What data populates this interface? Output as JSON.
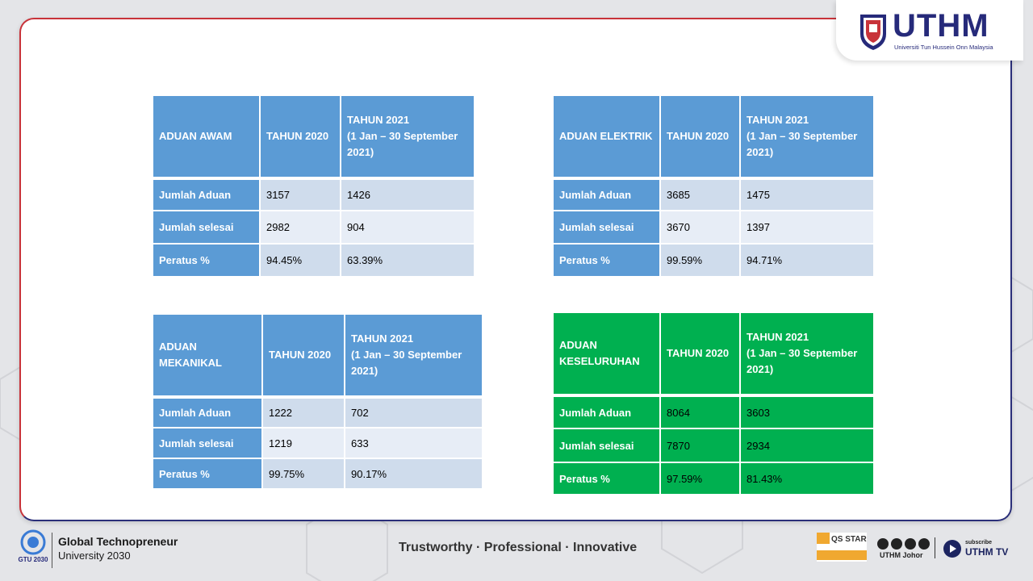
{
  "logo": {
    "name": "UTHM",
    "subtitle": "Universiti Tun Hussein Onn Malaysia"
  },
  "tables": [
    {
      "id": "awam",
      "header": [
        "ADUAN AWAM",
        "TAHUN 2020",
        "TAHUN 2021",
        "(1 Jan – 30 September",
        "2021)"
      ],
      "rows": [
        {
          "label": "Jumlah Aduan",
          "y2020": "3157",
          "y2021": "1426"
        },
        {
          "label": "Jumlah selesai",
          "y2020": "2982",
          "y2021": "904"
        },
        {
          "label": "Peratus %",
          "y2020": "94.45%",
          "y2021": "63.39%"
        }
      ]
    },
    {
      "id": "elektrik",
      "header": [
        "ADUAN ELEKTRIK",
        "TAHUN 2020",
        "TAHUN 2021",
        "(1 Jan – 30 September",
        "2021)"
      ],
      "rows": [
        {
          "label": "Jumlah Aduan",
          "y2020": "3685",
          "y2021": "1475"
        },
        {
          "label": "Jumlah selesai",
          "y2020": "3670",
          "y2021": "1397"
        },
        {
          "label": "Peratus %",
          "y2020": "99.59%",
          "y2021": "94.71%"
        }
      ]
    },
    {
      "id": "mekanikal",
      "header": [
        "ADUAN",
        "MEKANIKAL",
        "TAHUN 2020",
        "TAHUN 2021",
        "(1 Jan – 30 September",
        "2021)"
      ],
      "rows": [
        {
          "label": "Jumlah Aduan",
          "y2020": "1222",
          "y2021": "702"
        },
        {
          "label": "Jumlah selesai",
          "y2020": "1219",
          "y2021": "633"
        },
        {
          "label": "Peratus %",
          "y2020": "99.75%",
          "y2021": "90.17%"
        }
      ]
    },
    {
      "id": "keseluruhan",
      "header": [
        "ADUAN",
        "KESELURUHAN",
        "TAHUN 2020",
        "TAHUN 2021",
        "(1 Jan – 30 September",
        "2021)"
      ],
      "rows": [
        {
          "label": "Jumlah Aduan",
          "y2020": "8064",
          "y2021": "3603"
        },
        {
          "label": "Jumlah selesai",
          "y2020": "7870",
          "y2021": "2934"
        },
        {
          "label": "Peratus %",
          "y2020": "97.59%",
          "y2021": "81.43%"
        }
      ]
    }
  ],
  "footer": {
    "gtu_badge": "GTU 2030",
    "gtu_line1": "Global Technopreneur",
    "gtu_line2": "University 2030",
    "tagline": "Trustworthy · Professional · Innovative",
    "qs_badge": "QS STARS",
    "social_handle": "UTHM Johor",
    "subscribe": "subscribe",
    "tv": "UTHM TV"
  },
  "colors": {
    "table_blue": "#5b9bd5",
    "table_green": "#00b050",
    "brand_navy": "#262a7a",
    "brand_red": "#c8333a"
  }
}
